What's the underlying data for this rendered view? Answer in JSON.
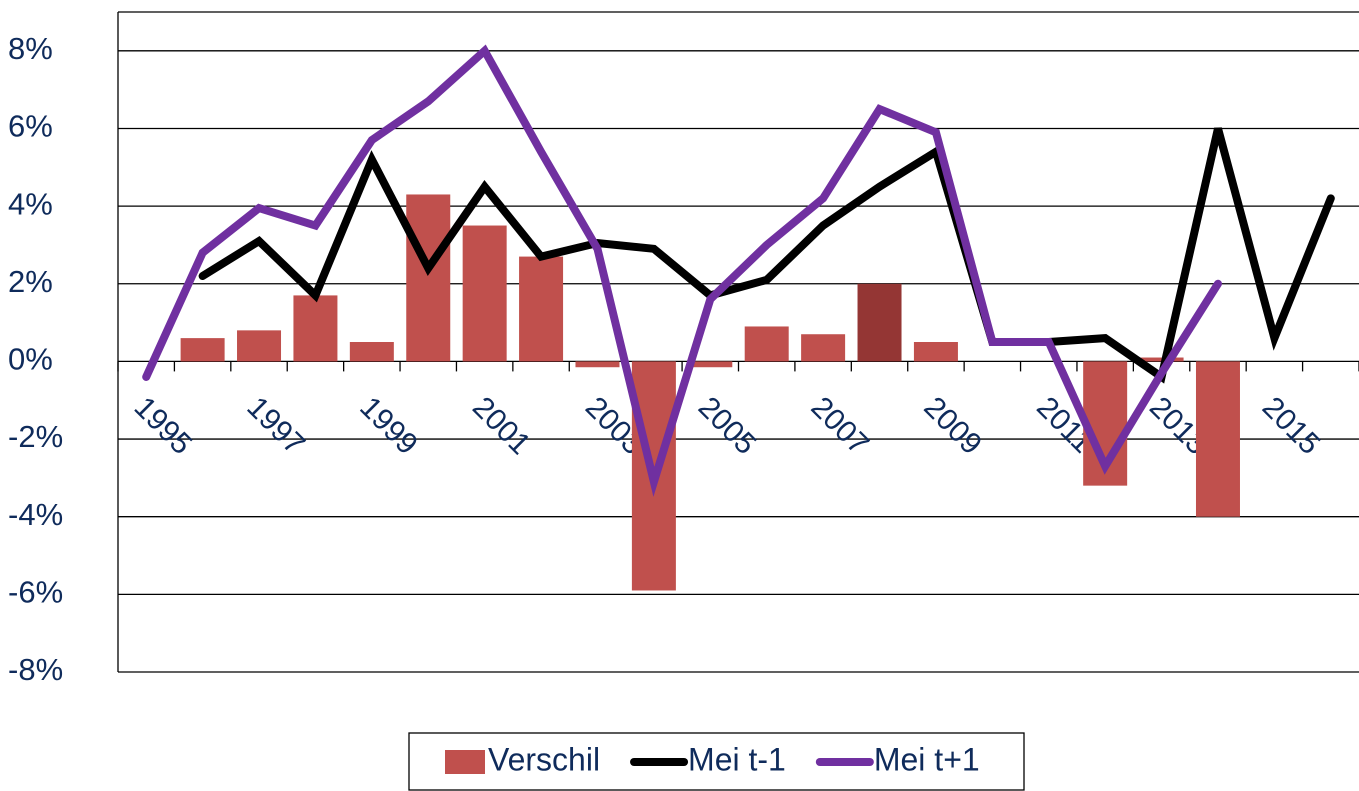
{
  "chart_data": {
    "type": "bar-line",
    "categories": [
      "1995",
      null,
      "1997",
      null,
      "1999",
      null,
      "2001",
      null,
      "2003",
      null,
      "2005",
      null,
      "2007",
      null,
      "2009",
      null,
      "2011",
      null,
      "2013",
      null,
      "2015",
      null
    ],
    "series": [
      {
        "name": "Verschil",
        "type": "bar",
        "color": "#c0504d",
        "colors": [
          "#c0504d",
          "#c0504d",
          "#c0504d",
          "#c0504d",
          "#c0504d",
          "#c0504d",
          "#c0504d",
          "#c0504d",
          "#c0504d",
          "#c0504d",
          "#c0504d",
          "#c0504d",
          "#c0504d",
          "#943634",
          "#c0504d",
          "#c0504d",
          "#c0504d",
          "#c0504d",
          "#c0504d",
          "#c0504d",
          "#c0504d",
          "#c0504d"
        ],
        "values": [
          null,
          0.6,
          0.8,
          1.7,
          0.5,
          4.3,
          3.5,
          2.7,
          -0.15,
          -5.9,
          -0.15,
          0.9,
          0.7,
          2.0,
          0.5,
          0,
          0,
          -3.2,
          0.1,
          -4.0,
          null,
          null
        ]
      },
      {
        "name": "Mei t-1",
        "type": "line",
        "color": "#000000",
        "values": [
          null,
          2.2,
          3.1,
          1.7,
          5.2,
          2.4,
          4.5,
          2.7,
          3.05,
          2.9,
          1.7,
          2.1,
          3.5,
          4.5,
          5.4,
          0.5,
          0.5,
          0.6,
          -0.4,
          6.0,
          0.6,
          4.2
        ]
      },
      {
        "name": "Mei t+1",
        "type": "line",
        "color": "#7030a0",
        "values": [
          -0.4,
          2.8,
          3.95,
          3.5,
          5.7,
          6.7,
          8.0,
          5.4,
          2.9,
          -3.1,
          1.6,
          3.0,
          4.2,
          6.5,
          5.9,
          0.5,
          0.5,
          -2.7,
          -0.3,
          2.0,
          null,
          null
        ]
      }
    ],
    "ylim": [
      -8,
      9
    ],
    "yticks": [
      {
        "value": -8,
        "label": "-8%"
      },
      {
        "value": -6,
        "label": "-6%"
      },
      {
        "value": -4,
        "label": "-4%"
      },
      {
        "value": -2,
        "label": "-2%"
      },
      {
        "value": 0,
        "label": "0%"
      },
      {
        "value": 2,
        "label": "2%"
      },
      {
        "value": 4,
        "label": "4%"
      },
      {
        "value": 6,
        "label": "6%"
      },
      {
        "value": 8,
        "label": "8%"
      }
    ],
    "grid": true,
    "legend": "bottom"
  }
}
